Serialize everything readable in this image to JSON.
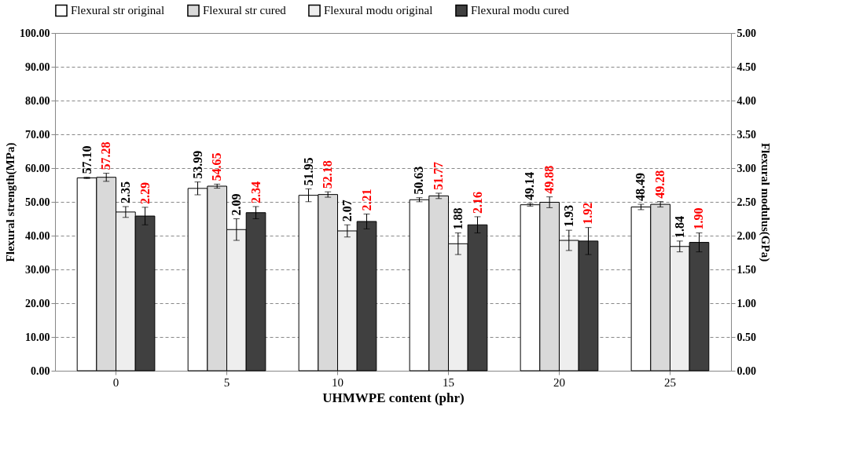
{
  "chart_data": {
    "type": "bar",
    "xlabel": "UHMWPE content (phr)",
    "ylabel": "Flexural strength(MPa)",
    "y2label": "Flexural modulus(GPa)",
    "categories": [
      "0",
      "5",
      "10",
      "15",
      "20",
      "25"
    ],
    "series": [
      {
        "name": "Flexural str original",
        "color": "#ffffff",
        "values": [
          57.1,
          53.99,
          51.95,
          50.63,
          49.14,
          48.49
        ],
        "errors": [
          0.2,
          1.9,
          1.9,
          0.6,
          0.4,
          0.8
        ],
        "value_labels": [
          "57.10",
          "53.99",
          "51.95",
          "50.63",
          "49.14",
          "48.49"
        ]
      },
      {
        "name": "Flexural str cured",
        "color": "#d9d9d9",
        "values": [
          57.28,
          54.65,
          52.18,
          51.77,
          49.88,
          49.28
        ],
        "errors": [
          1.2,
          0.6,
          0.8,
          0.8,
          1.6,
          0.8
        ],
        "value_labels": [
          "57.28",
          "54.65",
          "52.18",
          "51.77",
          "49.88",
          "49.28"
        ]
      },
      {
        "name": "Flexural modu original",
        "color": "#eeeeee",
        "axis": "y2",
        "values": [
          2.35,
          2.09,
          2.07,
          1.88,
          1.93,
          1.84
        ],
        "errors": [
          0.08,
          0.16,
          0.09,
          0.16,
          0.15,
          0.08
        ],
        "value_labels": [
          "2.35",
          "2.09",
          "2.07",
          "1.88",
          "1.93",
          "1.84"
        ]
      },
      {
        "name": "Flexural modu cured",
        "color": "#404040",
        "axis": "y2",
        "values": [
          2.29,
          2.34,
          2.21,
          2.16,
          1.92,
          1.9
        ],
        "errors": [
          0.13,
          0.09,
          0.11,
          0.12,
          0.2,
          0.14
        ],
        "value_labels": [
          "2.29",
          "2.34",
          "2.21",
          "2.16",
          "1.92",
          "1.90"
        ]
      }
    ],
    "ylim": [
      0,
      100
    ],
    "yticks": [
      {
        "value": 0,
        "label": "0.00"
      },
      {
        "value": 10,
        "label": "10.00"
      },
      {
        "value": 20,
        "label": "20.00"
      },
      {
        "value": 30,
        "label": "30.00"
      },
      {
        "value": 40,
        "label": "40.00"
      },
      {
        "value": 50,
        "label": "50.00"
      },
      {
        "value": 60,
        "label": "60.00"
      },
      {
        "value": 70,
        "label": "70.00"
      },
      {
        "value": 80,
        "label": "80.00"
      },
      {
        "value": 90,
        "label": "90.00"
      },
      {
        "value": 100,
        "label": "100.00"
      }
    ],
    "y2lim": [
      0,
      5
    ],
    "y2ticks": [
      {
        "value": 0,
        "label": "0.00"
      },
      {
        "value": 0.5,
        "label": "0.50"
      },
      {
        "value": 1,
        "label": "1.00"
      },
      {
        "value": 1.5,
        "label": "1.50"
      },
      {
        "value": 2,
        "label": "2.00"
      },
      {
        "value": 2.5,
        "label": "2.50"
      },
      {
        "value": 3,
        "label": "3.00"
      },
      {
        "value": 3.5,
        "label": "3.50"
      },
      {
        "value": 4,
        "label": "4.00"
      },
      {
        "value": 4.5,
        "label": "4.50"
      },
      {
        "value": 5,
        "label": "5.00"
      }
    ],
    "grid": "y",
    "legend": "top"
  }
}
